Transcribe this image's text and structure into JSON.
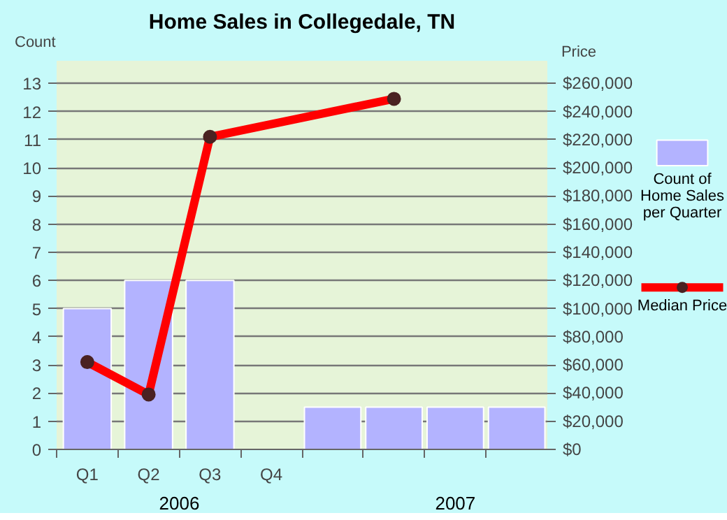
{
  "chart_data": {
    "type": "bar",
    "title": "Home Sales in Collegedale, TN",
    "ylabel": "Count",
    "y2label": "Price",
    "categories": [
      "Q1",
      "Q2",
      "Q3",
      "Q4",
      null,
      null,
      null,
      null
    ],
    "annotations": [
      "2006",
      "2007"
    ],
    "ylim": [
      0,
      13.8
    ],
    "yticks": [
      0,
      1,
      2,
      3,
      4,
      5,
      6,
      7,
      8,
      9,
      10,
      11,
      12,
      13
    ],
    "y2lim": [
      0,
      276000
    ],
    "y2ticks": [
      {
        "value": 0,
        "label": "$0"
      },
      {
        "value": 20000,
        "label": "$20,000"
      },
      {
        "value": 40000,
        "label": "$40,000"
      },
      {
        "value": 60000,
        "label": "$60,000"
      },
      {
        "value": 80000,
        "label": "$80,000"
      },
      {
        "value": 100000,
        "label": "$100,000"
      },
      {
        "value": 120000,
        "label": "$120,000"
      },
      {
        "value": 140000,
        "label": "$140,000"
      },
      {
        "value": 160000,
        "label": "$160,000"
      },
      {
        "value": 180000,
        "label": "$180,000"
      },
      {
        "value": 200000,
        "label": "$200,000"
      },
      {
        "value": 220000,
        "label": "$220,000"
      },
      {
        "value": 240000,
        "label": "$240,000"
      },
      {
        "value": 260000,
        "label": "$260,000"
      }
    ],
    "series": [
      {
        "name": "Count of Home Sales per Quarter",
        "color": "#b3b3ff",
        "values": [
          5,
          6,
          6,
          null,
          1.5,
          1.5,
          1.5,
          1.5
        ]
      },
      {
        "name": "Median Price",
        "type": "line",
        "axis": "y2",
        "color": "#ff0000",
        "values": [
          62000,
          39000,
          222000,
          null,
          null,
          249000,
          null,
          null
        ]
      }
    ],
    "grid": "y",
    "legend": "right",
    "marker": "circle"
  }
}
